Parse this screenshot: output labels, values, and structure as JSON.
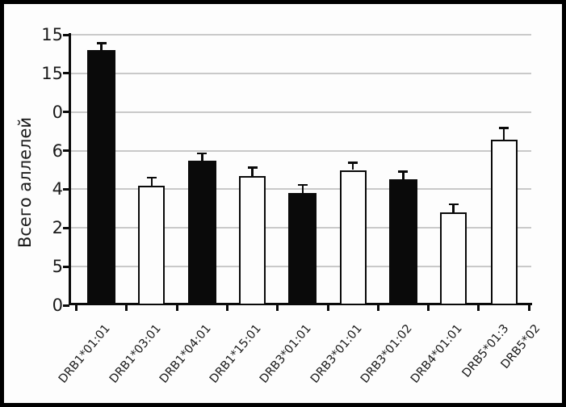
{
  "chart_data": {
    "type": "bar",
    "title": "",
    "xlabel": "",
    "ylabel": "Всего аллелей",
    "categories": [
      "DRB1*01:01",
      "DRB1*03:01",
      "DRB1*04:01",
      "DRB1*15:01",
      "DRB3*01:01",
      "DRB3*01:01",
      "DRB3*01:02",
      "DRB4*01:01",
      "DRB5*01:3",
      "DRB5*02"
    ],
    "bars": [
      {
        "label": "DRB1*01:01",
        "value": 13.2,
        "error": 0.35,
        "fill": "black"
      },
      {
        "label": "DRB1*03:01",
        "value": 6.2,
        "error": 0.4,
        "fill": "white"
      },
      {
        "label": "DRB1*04:01",
        "value": 7.5,
        "error": 0.35,
        "fill": "black"
      },
      {
        "label": "DRB1*15:01",
        "value": 6.7,
        "error": 0.42,
        "fill": "white"
      },
      {
        "label": "DRB3*01:01",
        "value": 5.8,
        "error": 0.42,
        "fill": "black"
      },
      {
        "label": "DRB3*01:01",
        "value": 7.0,
        "error": 0.38,
        "fill": "white"
      },
      {
        "label": "DRB3*01:02",
        "value": 6.5,
        "error": 0.42,
        "fill": "black"
      },
      {
        "label": "DRB4*01:01",
        "value": 4.8,
        "error": 0.42,
        "fill": "white"
      },
      {
        "label": "DRB5*01:3 / DRB5*02",
        "value": 8.55,
        "error": 0.63,
        "fill": "white"
      }
    ],
    "xtick_labels": [
      "DRB1*01:01",
      "DRB1*03:01",
      "DRB1*04:01",
      "DRB1*15:01",
      "DRB3*01:01",
      "DRB3*01:01",
      "DRB3*01:02",
      "DRB4*01:01",
      "DRB5*01:3",
      "DRB5*02"
    ],
    "ytick_labels_top_to_bottom": [
      "15",
      "15",
      "0",
      "6",
      "4",
      "2",
      "5",
      "0"
    ],
    "ylim": [
      0,
      14
    ],
    "grid": true,
    "legend": "none",
    "colors": {
      "bar_filled": "#0a0a0a",
      "bar_open": "#ffffff",
      "bar_outline": "#0a0a0a",
      "gridline": "#c9c9c9",
      "axis": "#0a0a0a",
      "text": "#1a1a1a",
      "frame_border": "#000000",
      "background": "#ffffff"
    }
  }
}
